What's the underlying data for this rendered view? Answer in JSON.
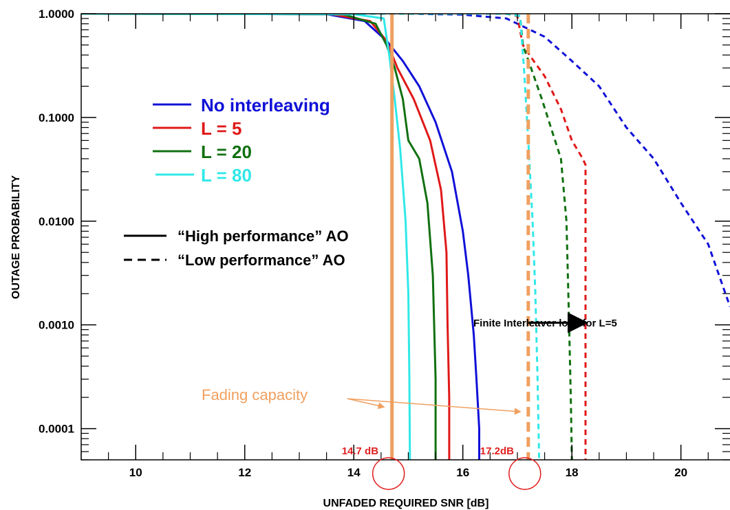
{
  "chart_data": {
    "type": "line",
    "title": "",
    "xlabel": "UNFADED REQUIRED SNR [dB]",
    "ylabel": "OUTAGE PROBABILITY",
    "xlim": [
      9,
      20.9
    ],
    "ylim": [
      5e-05,
      1.0
    ],
    "y_scale": "log",
    "x_ticks": [
      10,
      12,
      14,
      16,
      18,
      20
    ],
    "y_ticks": [
      1.0,
      0.1,
      0.01,
      0.001,
      0.0001
    ],
    "x_tick_labels": [
      "10",
      "12",
      "14",
      "16",
      "18",
      "20"
    ],
    "y_tick_labels": [
      "1.0000",
      "0.1000",
      "0.0100",
      "0.0010",
      "0.0001"
    ],
    "grid": false,
    "legend_placement": "upper-left",
    "series": [
      {
        "name": "No interleaving",
        "style": "solid",
        "color": "#1010d8",
        "x": [
          9,
          13.5,
          14.2,
          14.6,
          14.9,
          15.2,
          15.5,
          15.8,
          16.0,
          16.1,
          16.2,
          16.25,
          16.3,
          16.3
        ],
        "y": [
          1.0,
          0.99,
          0.85,
          0.55,
          0.35,
          0.2,
          0.09,
          0.03,
          0.008,
          0.003,
          0.0008,
          0.0003,
          0.0001,
          5e-05
        ]
      },
      {
        "name": "L = 5",
        "style": "solid",
        "color": "#e01818",
        "x": [
          9,
          13.6,
          14.3,
          14.6,
          14.8,
          15.1,
          15.4,
          15.6,
          15.7,
          15.72,
          15.75,
          15.75
        ],
        "y": [
          1.0,
          0.99,
          0.85,
          0.55,
          0.3,
          0.15,
          0.06,
          0.02,
          0.005,
          0.001,
          0.0002,
          5e-05
        ]
      },
      {
        "name": "L = 20",
        "style": "solid",
        "color": "#107010",
        "x": [
          9,
          13.8,
          14.4,
          14.6,
          14.75,
          14.9,
          15.0,
          15.2,
          15.35,
          15.45,
          15.5,
          15.5
        ],
        "y": [
          1.0,
          0.99,
          0.8,
          0.5,
          0.3,
          0.15,
          0.06,
          0.04,
          0.015,
          0.003,
          0.0003,
          5e-05
        ]
      },
      {
        "name": "L = 80",
        "style": "solid",
        "color": "#30e8e8",
        "x": [
          9,
          14.0,
          14.55,
          14.65,
          14.75,
          14.85,
          14.95,
          15.0,
          15.02,
          15.03
        ],
        "y": [
          1.0,
          0.99,
          0.9,
          0.4,
          0.15,
          0.05,
          0.01,
          0.002,
          0.0003,
          5e-05
        ]
      },
      {
        "name": "No interleaving",
        "style": "dashed",
        "color": "#1010d8",
        "x": [
          9,
          15.0,
          16.0,
          16.8,
          17.5,
          18.0,
          18.5,
          19.0,
          19.5,
          20.0,
          20.5,
          20.9
        ],
        "y": [
          1.0,
          1.0,
          0.98,
          0.9,
          0.6,
          0.35,
          0.2,
          0.08,
          0.04,
          0.015,
          0.006,
          0.0015
        ]
      },
      {
        "name": "L = 5",
        "style": "dashed",
        "color": "#e01818",
        "x": [
          9,
          16.8,
          17.0,
          17.1,
          17.3,
          17.5,
          17.8,
          18.0,
          18.2,
          18.25,
          18.25
        ],
        "y": [
          1.0,
          1.0,
          0.95,
          0.5,
          0.35,
          0.25,
          0.12,
          0.06,
          0.04,
          0.035,
          5e-05
        ]
      },
      {
        "name": "L = 20",
        "style": "dashed",
        "color": "#107010",
        "x": [
          9,
          16.8,
          17.05,
          17.1,
          17.25,
          17.45,
          17.65,
          17.8,
          17.9,
          17.95,
          17.98,
          18.0
        ],
        "y": [
          1.0,
          1.0,
          0.95,
          0.5,
          0.3,
          0.15,
          0.07,
          0.04,
          0.01,
          0.001,
          0.0002,
          5e-05
        ]
      },
      {
        "name": "L = 80",
        "style": "dashed",
        "color": "#30e8e8",
        "x": [
          9,
          16.8,
          17.05,
          17.12,
          17.2,
          17.28,
          17.33,
          17.37,
          17.4
        ],
        "y": [
          1.0,
          1.0,
          0.95,
          0.3,
          0.06,
          0.01,
          0.002,
          0.0003,
          5e-05
        ]
      }
    ],
    "legend": {
      "entries": [
        {
          "name": "No interleaving",
          "color": "#1010d8"
        },
        {
          "name": "L = 5",
          "color": "#e01818"
        },
        {
          "name": "L = 20",
          "color": "#107010"
        },
        {
          "name": "L = 80",
          "color": "#30e8e8"
        }
      ],
      "styles": [
        {
          "name": "“High performance” AO",
          "style": "solid"
        },
        {
          "name": "“Low performance” AO",
          "style": "dashed"
        }
      ]
    },
    "vertical_lines": [
      {
        "x": 14.7,
        "style": "solid",
        "color": "#f0a060",
        "label": "14.7 dB"
      },
      {
        "x": 17.2,
        "style": "dashed",
        "color": "#f0a060",
        "label": "17.2dB"
      }
    ],
    "annotations": {
      "fading_capacity": "Fading capacity",
      "interleaver_loss": "Finite Interleaver loss for L=5",
      "interleaver_arrow_x": [
        17.2,
        18.25
      ],
      "interleaver_arrow_y": 0.00105
    },
    "colors": {
      "highlight_circle": "#e02020",
      "orange": "#f0a060"
    }
  }
}
